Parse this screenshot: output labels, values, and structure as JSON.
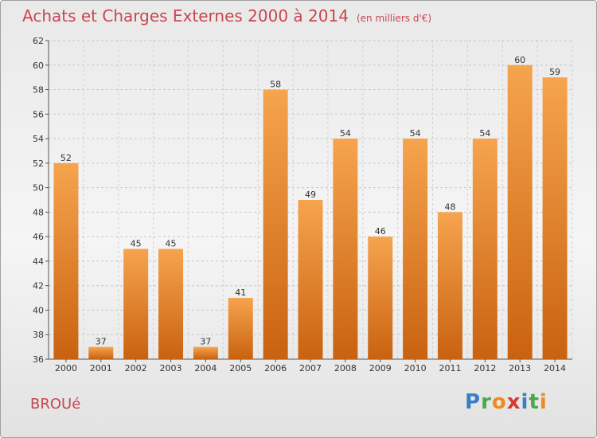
{
  "title": "Achats et Charges Externes 2000 à 2014",
  "subtitle": "(en milliers d'€)",
  "commune": "BROUé",
  "logo": "Proxiti",
  "colors": {
    "bar_top": "#f6a44e",
    "bar_bottom": "#c96210",
    "title": "#c84650"
  },
  "chart_data": {
    "type": "bar",
    "categories": [
      "2000",
      "2001",
      "2002",
      "2003",
      "2004",
      "2005",
      "2006",
      "2007",
      "2008",
      "2009",
      "2010",
      "2011",
      "2012",
      "2013",
      "2014"
    ],
    "values": [
      52,
      37,
      45,
      45,
      37,
      41,
      58,
      49,
      54,
      46,
      54,
      48,
      54,
      60,
      59
    ],
    "ylim": [
      36,
      62
    ],
    "yticks": [
      36,
      38,
      40,
      42,
      44,
      46,
      48,
      50,
      52,
      54,
      56,
      58,
      60,
      62
    ],
    "grid": true,
    "data_labels": true
  }
}
